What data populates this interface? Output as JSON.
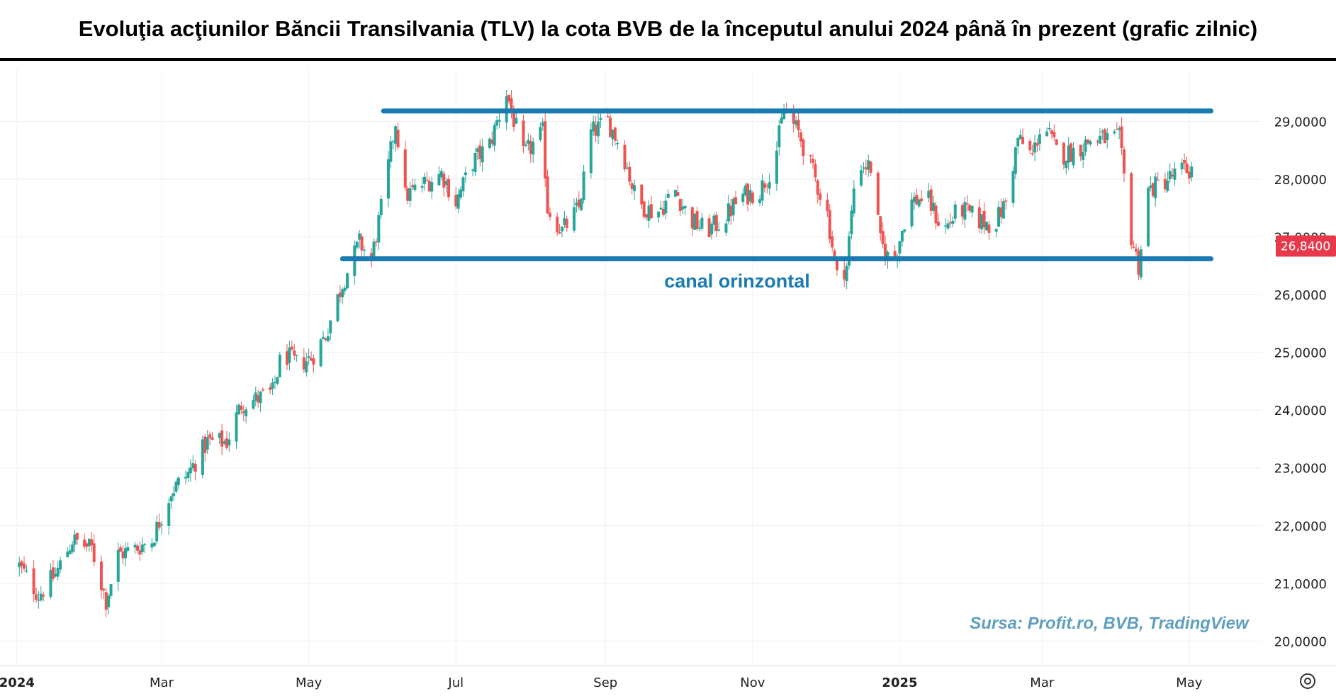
{
  "title": "Evoluţia acţiunilor Băncii Transilvania (TLV) la cota BVB de la începutul anului 2024 până în prezent (grafic zilnic)",
  "annotation": "canal orinzontal",
  "source": "Sursa: Profit.ro, BVB, TradingView",
  "colors": {
    "up": "#26a69a",
    "down": "#ef5350",
    "channel": "#1a7bb0",
    "price_label_bg": "#e8394a"
  },
  "settings_icon": "gear-icon",
  "chart_data": {
    "type": "candlestick",
    "title": "",
    "ylim": [
      19600,
      29900
    ],
    "y_ticks": [
      {
        "value": 20000,
        "label": "20,0000"
      },
      {
        "value": 21000,
        "label": "21,0000"
      },
      {
        "value": 22000,
        "label": "22,0000"
      },
      {
        "value": 23000,
        "label": "23,0000"
      },
      {
        "value": 24000,
        "label": "24,0000"
      },
      {
        "value": 25000,
        "label": "25,0000"
      },
      {
        "value": 26000,
        "label": "26,0000"
      },
      {
        "value": 27000,
        "label": "27,0000"
      },
      {
        "value": 28000,
        "label": "28,0000"
      },
      {
        "value": 29000,
        "label": "29,0000"
      }
    ],
    "x_ticks": [
      {
        "date": "2024-01-01",
        "label": "2024",
        "bold": true
      },
      {
        "date": "2024-03-01",
        "label": "Mar",
        "bold": false
      },
      {
        "date": "2024-05-01",
        "label": "May",
        "bold": false
      },
      {
        "date": "2024-07-01",
        "label": "Jul",
        "bold": false
      },
      {
        "date": "2024-09-01",
        "label": "Sep",
        "bold": false
      },
      {
        "date": "2024-11-01",
        "label": "Nov",
        "bold": false
      },
      {
        "date": "2025-01-01",
        "label": "2025",
        "bold": true
      },
      {
        "date": "2025-03-01",
        "label": "Mar",
        "bold": false
      },
      {
        "date": "2025-05-01",
        "label": "May",
        "bold": false
      }
    ],
    "last_price": {
      "value": 26840,
      "label": "26,8400"
    },
    "channel": {
      "upper": {
        "value": 29180,
        "from": "2024-06-01",
        "to": "2025-05-10"
      },
      "lower": {
        "value": 26620,
        "from": "2024-05-15",
        "to": "2025-05-10"
      }
    },
    "anchors": [
      [
        "2024-01-02",
        21300
      ],
      [
        "2024-01-10",
        20800
      ],
      [
        "2024-01-17",
        21150
      ],
      [
        "2024-01-24",
        21750
      ],
      [
        "2024-02-01",
        21600
      ],
      [
        "2024-02-07",
        20700
      ],
      [
        "2024-02-12",
        21500
      ],
      [
        "2024-02-19",
        21600
      ],
      [
        "2024-02-26",
        21750
      ],
      [
        "2024-03-05",
        22600
      ],
      [
        "2024-03-12",
        22900
      ],
      [
        "2024-03-20",
        23450
      ],
      [
        "2024-03-28",
        23450
      ],
      [
        "2024-04-03",
        24100
      ],
      [
        "2024-04-10",
        24200
      ],
      [
        "2024-04-16",
        24300
      ],
      [
        "2024-04-20",
        25000
      ],
      [
        "2024-04-26",
        24800
      ],
      [
        "2024-05-02",
        24900
      ],
      [
        "2024-05-08",
        25300
      ],
      [
        "2024-05-15",
        26200
      ],
      [
        "2024-05-22",
        26900
      ],
      [
        "2024-05-27",
        26600
      ],
      [
        "2024-06-01",
        27700
      ],
      [
        "2024-06-06",
        29000
      ],
      [
        "2024-06-10",
        27700
      ],
      [
        "2024-06-17",
        27900
      ],
      [
        "2024-06-25",
        28100
      ],
      [
        "2024-07-01",
        27600
      ],
      [
        "2024-07-08",
        28300
      ],
      [
        "2024-07-15",
        28600
      ],
      [
        "2024-07-22",
        29500
      ],
      [
        "2024-07-29",
        28400
      ],
      [
        "2024-08-06",
        28800
      ],
      [
        "2024-08-08",
        27500
      ],
      [
        "2024-08-14",
        27100
      ],
      [
        "2024-08-21",
        27500
      ],
      [
        "2024-08-26",
        28800
      ],
      [
        "2024-09-02",
        29000
      ],
      [
        "2024-09-08",
        28500
      ],
      [
        "2024-09-14",
        27600
      ],
      [
        "2024-09-22",
        27400
      ],
      [
        "2024-09-30",
        27800
      ],
      [
        "2024-10-06",
        27300
      ],
      [
        "2024-10-13",
        27100
      ],
      [
        "2024-10-20",
        27300
      ],
      [
        "2024-10-27",
        27700
      ],
      [
        "2024-11-04",
        27800
      ],
      [
        "2024-11-10",
        28300
      ],
      [
        "2024-11-14",
        29200
      ],
      [
        "2024-11-20",
        28800
      ],
      [
        "2024-11-27",
        28000
      ],
      [
        "2024-12-02",
        27400
      ],
      [
        "2024-12-06",
        26300
      ],
      [
        "2024-12-10",
        26500
      ],
      [
        "2024-12-14",
        28300
      ],
      [
        "2024-12-20",
        28200
      ],
      [
        "2024-12-24",
        26900
      ],
      [
        "2024-12-29",
        26500
      ],
      [
        "2025-01-05",
        27600
      ],
      [
        "2025-01-12",
        27700
      ],
      [
        "2025-01-19",
        27100
      ],
      [
        "2025-01-26",
        27500
      ],
      [
        "2025-02-02",
        27300
      ],
      [
        "2025-02-09",
        27200
      ],
      [
        "2025-02-14",
        27600
      ],
      [
        "2025-02-19",
        28700
      ],
      [
        "2025-02-25",
        28400
      ],
      [
        "2025-03-01",
        29000
      ],
      [
        "2025-03-08",
        28400
      ],
      [
        "2025-03-15",
        28500
      ],
      [
        "2025-03-22",
        28700
      ],
      [
        "2025-03-28",
        28700
      ],
      [
        "2025-04-02",
        28700
      ],
      [
        "2025-04-07",
        27000
      ],
      [
        "2025-04-10",
        26500
      ],
      [
        "2025-04-14",
        27800
      ],
      [
        "2025-04-22",
        28000
      ],
      [
        "2025-04-28",
        28150
      ],
      [
        "2025-05-03",
        28150
      ]
    ]
  }
}
